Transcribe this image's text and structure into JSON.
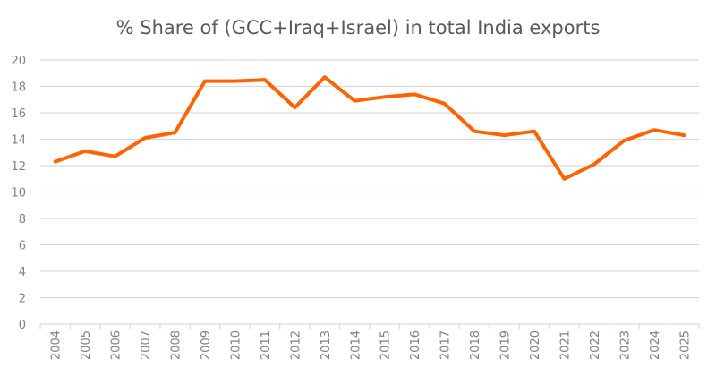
{
  "chart_data": {
    "type": "line",
    "title": "% Share of (GCC+Iraq+Israel)  in total India exports",
    "xlabel": "",
    "ylabel": "",
    "categories": [
      "2004",
      "2005",
      "2006",
      "2007",
      "2008",
      "2009",
      "2010",
      "2011",
      "2012",
      "2013",
      "2014",
      "2015",
      "2016",
      "2017",
      "2018",
      "2019",
      "2020",
      "2021",
      "2022",
      "2023",
      "2024",
      "2025"
    ],
    "series": [
      {
        "name": "% Share of (GCC+Iraq+Israel) in total India exports",
        "color": "#ff6200",
        "values": [
          12.3,
          13.1,
          12.7,
          14.1,
          14.5,
          18.4,
          18.4,
          18.5,
          16.4,
          18.7,
          16.9,
          17.2,
          17.4,
          16.7,
          14.6,
          14.3,
          14.6,
          11.0,
          12.1,
          13.9,
          14.7,
          14.3
        ]
      }
    ],
    "ylim": [
      0,
      20
    ],
    "yticks": [
      "0",
      "2",
      "4",
      "6",
      "8",
      "10",
      "12",
      "14",
      "16",
      "18",
      "20"
    ],
    "grid": true,
    "legend": "none"
  }
}
